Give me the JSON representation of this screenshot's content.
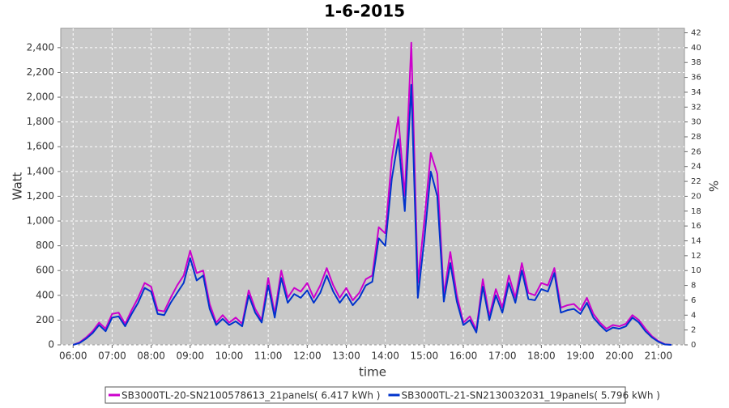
{
  "chart_data": {
    "type": "line",
    "title": "1-6-2015",
    "x_label": "time",
    "y_label": "Watt",
    "y2_label": "%",
    "x": [
      "06:00",
      "06:10",
      "06:20",
      "06:30",
      "06:40",
      "06:50",
      "07:00",
      "07:10",
      "07:20",
      "07:30",
      "07:40",
      "07:50",
      "08:00",
      "08:10",
      "08:20",
      "08:30",
      "08:40",
      "08:50",
      "09:00",
      "09:10",
      "09:20",
      "09:30",
      "09:40",
      "09:50",
      "10:00",
      "10:10",
      "10:20",
      "10:30",
      "10:40",
      "10:50",
      "11:00",
      "11:10",
      "11:20",
      "11:30",
      "11:40",
      "11:50",
      "12:00",
      "12:10",
      "12:20",
      "12:30",
      "12:40",
      "12:50",
      "13:00",
      "13:10",
      "13:20",
      "13:30",
      "13:40",
      "13:50",
      "14:00",
      "14:10",
      "14:20",
      "14:30",
      "14:40",
      "14:50",
      "15:00",
      "15:10",
      "15:20",
      "15:30",
      "15:40",
      "15:50",
      "16:00",
      "16:10",
      "16:20",
      "16:30",
      "16:40",
      "16:50",
      "17:00",
      "17:10",
      "17:20",
      "17:30",
      "17:40",
      "17:50",
      "18:00",
      "18:10",
      "18:20",
      "18:30",
      "18:40",
      "18:50",
      "19:00",
      "19:10",
      "19:20",
      "19:30",
      "19:40",
      "19:50",
      "20:00",
      "20:10",
      "20:20",
      "20:30",
      "20:40",
      "20:50",
      "21:00",
      "21:10",
      "21:20"
    ],
    "series": [
      {
        "name": "SB3000TL-20-SN2100578613_21panels( 6.417 kWh )",
        "color": "#cc00cc",
        "values": [
          0,
          20,
          60,
          110,
          180,
          130,
          250,
          260,
          170,
          280,
          380,
          500,
          470,
          280,
          270,
          380,
          480,
          560,
          760,
          580,
          600,
          330,
          180,
          240,
          180,
          220,
          170,
          440,
          290,
          200,
          540,
          250,
          600,
          380,
          460,
          430,
          500,
          380,
          480,
          620,
          480,
          380,
          460,
          360,
          420,
          530,
          560,
          950,
          900,
          1500,
          1840,
          1200,
          2440,
          500,
          1000,
          1550,
          1380,
          400,
          750,
          400,
          180,
          230,
          120,
          530,
          230,
          450,
          300,
          560,
          380,
          660,
          420,
          400,
          500,
          480,
          620,
          300,
          320,
          330,
          280,
          380,
          250,
          180,
          130,
          160,
          150,
          170,
          240,
          200,
          130,
          70,
          30,
          5,
          0
        ]
      },
      {
        "name": "SB3000TL-21-SN2130032031_19panels( 5.796 kWh )",
        "color": "#0033cc",
        "values": [
          0,
          15,
          50,
          95,
          160,
          110,
          220,
          230,
          150,
          250,
          340,
          460,
          430,
          250,
          240,
          340,
          420,
          500,
          700,
          520,
          560,
          290,
          160,
          210,
          160,
          190,
          150,
          400,
          260,
          180,
          480,
          220,
          540,
          340,
          410,
          380,
          440,
          340,
          420,
          560,
          430,
          340,
          410,
          320,
          380,
          480,
          510,
          860,
          800,
          1340,
          1660,
          1080,
          2100,
          380,
          850,
          1400,
          1200,
          350,
          660,
          350,
          160,
          200,
          100,
          470,
          200,
          400,
          260,
          500,
          340,
          600,
          370,
          360,
          450,
          430,
          580,
          260,
          280,
          290,
          250,
          340,
          220,
          160,
          110,
          140,
          130,
          150,
          220,
          180,
          110,
          60,
          25,
          3,
          0
        ]
      }
    ],
    "xlim": [
      "05:41",
      "21:40"
    ],
    "xticks": [
      "06:00",
      "07:00",
      "08:00",
      "09:00",
      "10:00",
      "11:00",
      "12:00",
      "13:00",
      "14:00",
      "15:00",
      "16:00",
      "17:00",
      "18:00",
      "19:00",
      "20:00",
      "21:00"
    ],
    "ylim": [
      0,
      2556
    ],
    "yticks": [
      0,
      200,
      400,
      600,
      800,
      {
        "value": 1000,
        "label": "1,000"
      },
      {
        "value": 1200,
        "label": "1,200"
      },
      {
        "value": 1400,
        "label": "1,400"
      },
      {
        "value": 1600,
        "label": "1,600"
      },
      {
        "value": 1800,
        "label": "1,800"
      },
      {
        "value": 2000,
        "label": "2,000"
      },
      {
        "value": 2200,
        "label": "2,200"
      },
      {
        "value": 2400,
        "label": "2,400"
      }
    ],
    "y2lim": [
      0,
      42.6
    ],
    "y2ticks": [
      0,
      2,
      4,
      6,
      8,
      10,
      12,
      14,
      16,
      18,
      20,
      22,
      24,
      26,
      28,
      30,
      32,
      34,
      36,
      38,
      40,
      42
    ],
    "grid": true
  }
}
